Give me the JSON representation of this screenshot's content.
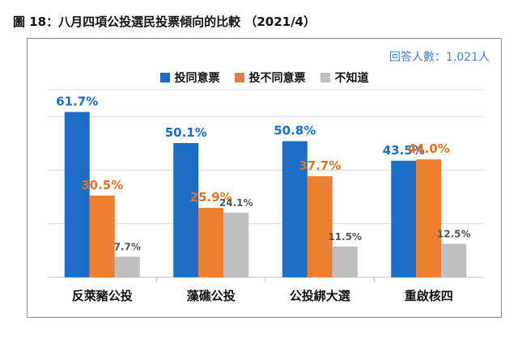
{
  "figure_title": "圖 18：八月四項公投選民投票傾向的比較 （2021/4）",
  "respondents": "回答人數：1,021人",
  "colors": {
    "agree": "#1c6dc4",
    "disagree": "#ee7e32",
    "unknown": "#bfbfbf",
    "grid": "#d9d9d9"
  },
  "chart_data": {
    "type": "bar",
    "title": "",
    "xlabel": "",
    "ylabel": "",
    "ylim": [
      0,
      70
    ],
    "grid": true,
    "legend_position": "top",
    "categories": [
      "反萊豬公投",
      "藻礁公投",
      "公投綁大選",
      "重啟核四"
    ],
    "series": [
      {
        "name": "投同意票",
        "values": [
          61.7,
          50.1,
          50.8,
          43.5
        ],
        "labels": [
          "61.7%",
          "50.1%",
          "50.8%",
          "43.5%"
        ],
        "color": "#1c6dc4"
      },
      {
        "name": "投不同意票",
        "values": [
          30.5,
          25.9,
          37.7,
          44.0
        ],
        "labels": [
          "30.5%",
          "25.9%",
          "37.7%",
          "44.0%"
        ],
        "color": "#ee7e32"
      },
      {
        "name": "不知道",
        "values": [
          7.7,
          24.1,
          11.5,
          12.5
        ],
        "labels": [
          "7.7%",
          "24.1%",
          "11.5%",
          "12.5%"
        ],
        "color": "#bfbfbf"
      }
    ]
  }
}
